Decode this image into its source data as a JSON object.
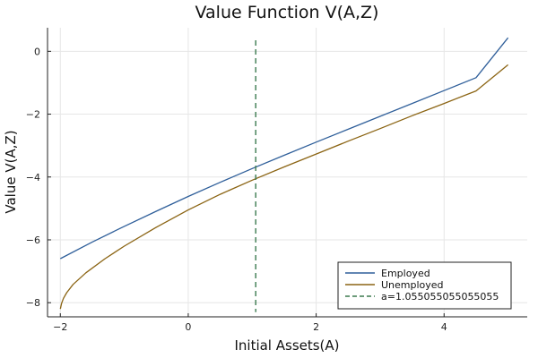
{
  "chart_data": {
    "type": "line",
    "title": "Value Function V(A,Z)",
    "xlabel": "Initial Assets(A)",
    "ylabel": "Value V(A,Z)",
    "xlim": [
      -2.2,
      5.3
    ],
    "ylim": [
      -8.45,
      0.75
    ],
    "xticks": [
      -2,
      0,
      2,
      4
    ],
    "yticks": [
      0,
      -2,
      -4,
      -6,
      -8
    ],
    "xtick_labels": [
      "−2",
      "0",
      "2",
      "4"
    ],
    "ytick_labels": [
      "0",
      "−2",
      "−4",
      "−6",
      "−8"
    ],
    "grid": true,
    "legend_position": "bottom-right",
    "series": [
      {
        "name": "Employed",
        "color": "#2f5f9a",
        "style": "solid",
        "x": [
          -2.0,
          -1.5,
          -1.0,
          -0.5,
          0.0,
          0.5,
          1.0,
          1.5,
          2.0,
          2.5,
          3.0,
          3.5,
          4.0,
          4.5,
          5.0
        ],
        "y": [
          -6.6,
          -6.07,
          -5.57,
          -5.09,
          -4.62,
          -4.17,
          -3.73,
          -3.31,
          -2.89,
          -2.48,
          -2.07,
          -1.66,
          -1.25,
          -0.84,
          0.43
        ]
      },
      {
        "name": "Unemployed",
        "color": "#8b6413",
        "style": "solid",
        "x": [
          -2.0,
          -1.98,
          -1.95,
          -1.9,
          -1.8,
          -1.6,
          -1.3,
          -1.0,
          -0.5,
          0.0,
          0.5,
          1.0,
          1.5,
          2.0,
          2.5,
          3.0,
          3.5,
          4.0,
          4.5,
          5.0
        ],
        "y": [
          -8.2,
          -8.02,
          -7.86,
          -7.68,
          -7.42,
          -7.05,
          -6.6,
          -6.2,
          -5.6,
          -5.05,
          -4.55,
          -4.1,
          -3.68,
          -3.27,
          -2.86,
          -2.46,
          -2.05,
          -1.66,
          -1.26,
          -0.43
        ]
      },
      {
        "name": "a=1.055055055055055",
        "color": "#3c7a4f",
        "style": "dashed",
        "vline_x": 1.055055055055055,
        "y_range": [
          -8.3,
          0.35
        ]
      }
    ]
  }
}
